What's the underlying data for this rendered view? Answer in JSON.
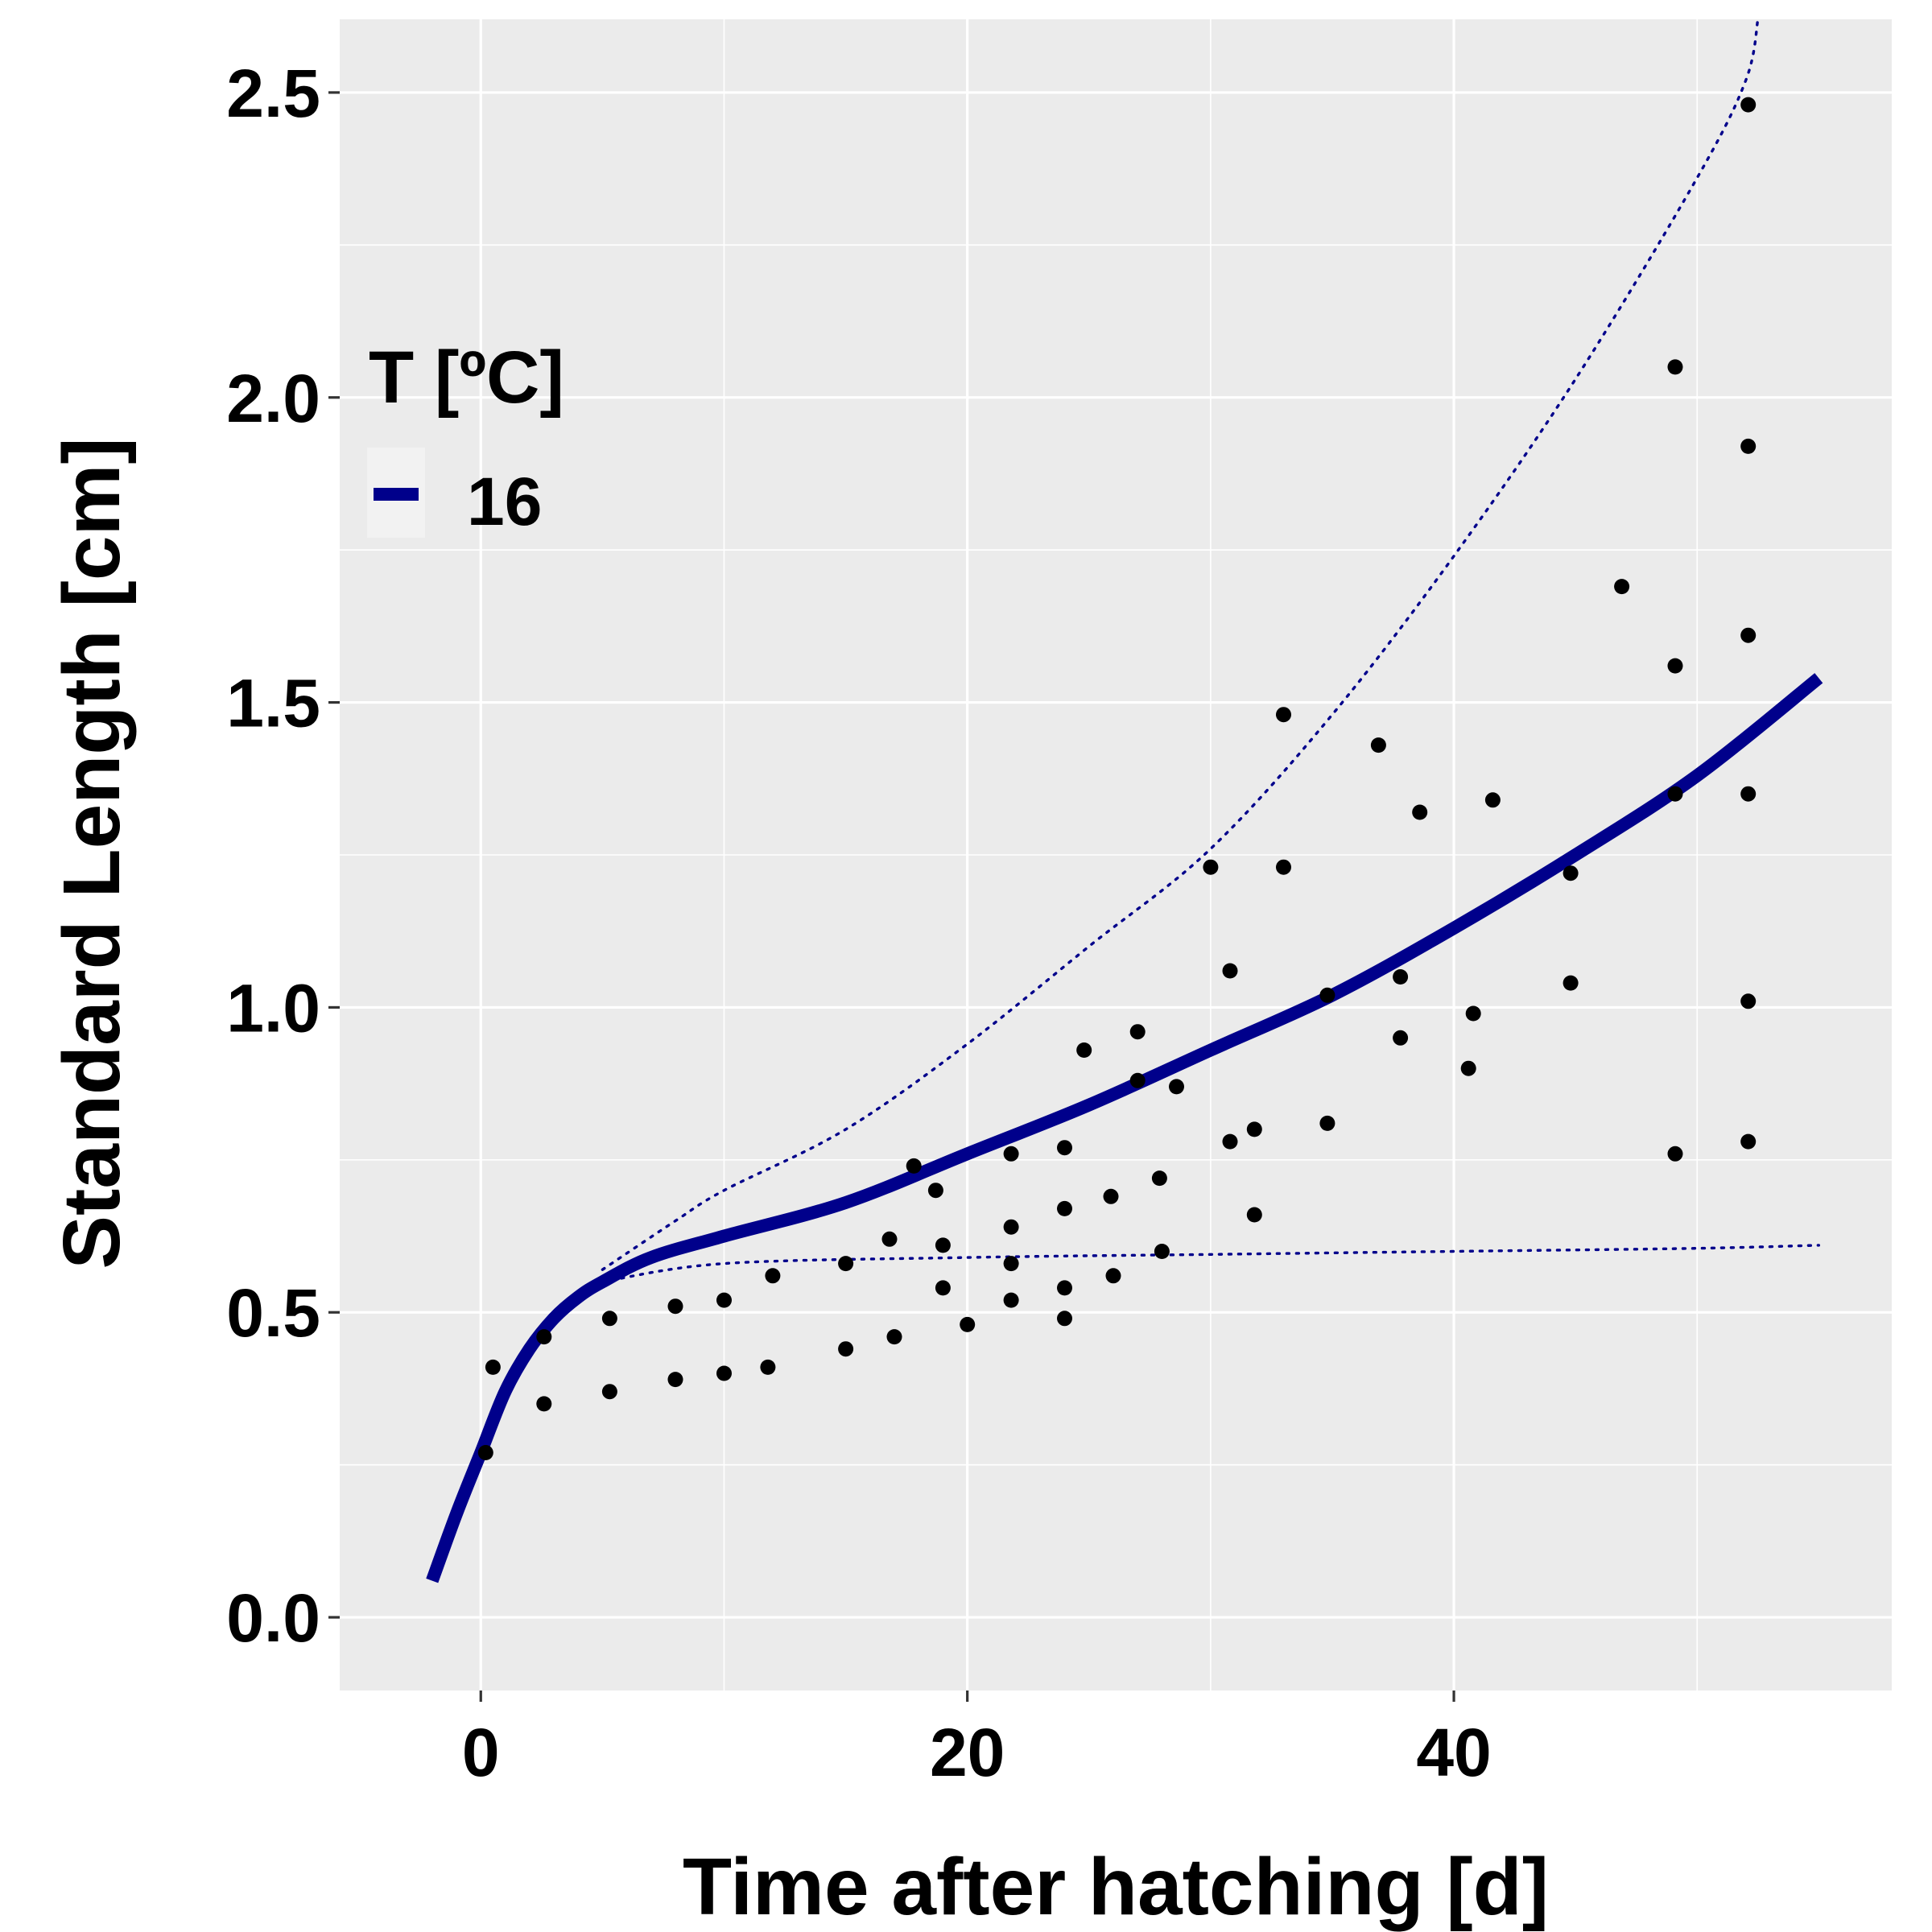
{
  "chart_data": {
    "type": "line",
    "title": "",
    "xlabel": "Time after hatching [d]",
    "ylabel": "Standard Length [cm]",
    "xlim": [
      -5.8,
      58.0
    ],
    "ylim": [
      -0.12,
      2.62
    ],
    "x_ticks": [
      0,
      20,
      40
    ],
    "x_tick_labels": [
      "0",
      "20",
      "40"
    ],
    "y_ticks": [
      0.0,
      0.5,
      1.0,
      1.5,
      2.0,
      2.5
    ],
    "y_tick_labels": [
      "0.0",
      "0.5",
      "1.0",
      "1.5",
      "2.0",
      "2.5"
    ],
    "grid": true,
    "panel_background": "#EBEBEB",
    "grid_color": "#FFFFFF",
    "legend": {
      "title": "T [ºC]",
      "position": "top-left",
      "entries": [
        {
          "label": "16",
          "color": "#00008B"
        }
      ]
    },
    "series": [
      {
        "name": "16",
        "kind": "fitted-line",
        "color": "#00008B",
        "x": [
          -2,
          -1,
          0,
          1,
          2,
          3,
          4,
          5,
          7,
          10,
          15,
          20,
          25,
          30,
          35,
          40,
          45,
          50,
          55
        ],
        "y": [
          0.06,
          0.17,
          0.27,
          0.37,
          0.44,
          0.49,
          0.525,
          0.55,
          0.59,
          0.625,
          0.68,
          0.76,
          0.84,
          0.93,
          1.02,
          1.13,
          1.25,
          1.38,
          1.54
        ]
      },
      {
        "kind": "upper-bound-dotted",
        "color": "#00008B",
        "x": [
          5,
          8,
          10,
          15,
          20,
          25,
          30,
          35,
          40,
          45,
          50,
          52,
          52.5
        ],
        "y": [
          0.57,
          0.65,
          0.7,
          0.8,
          0.94,
          1.1,
          1.26,
          1.48,
          1.74,
          2.03,
          2.36,
          2.52,
          2.62
        ]
      },
      {
        "kind": "lower-bound-dotted",
        "color": "#00008B",
        "x": [
          5,
          10,
          20,
          30,
          40,
          50,
          55
        ],
        "y": [
          0.55,
          0.58,
          0.59,
          0.595,
          0.6,
          0.605,
          0.61
        ]
      },
      {
        "kind": "observations",
        "color": "#000000",
        "points": [
          [
            0.5,
            0.41
          ],
          [
            0.2,
            0.27
          ],
          [
            2.6,
            0.46
          ],
          [
            2.6,
            0.35
          ],
          [
            5.3,
            0.49
          ],
          [
            5.3,
            0.37
          ],
          [
            8,
            0.51
          ],
          [
            8,
            0.39
          ],
          [
            10,
            0.52
          ],
          [
            10,
            0.4
          ],
          [
            12,
            0.56
          ],
          [
            11.8,
            0.41
          ],
          [
            15,
            0.58
          ],
          [
            15,
            0.44
          ],
          [
            16.8,
            0.62
          ],
          [
            17,
            0.46
          ],
          [
            17.8,
            0.74
          ],
          [
            18.7,
            0.7
          ],
          [
            19,
            0.61
          ],
          [
            19,
            0.54
          ],
          [
            20,
            0.48
          ],
          [
            21.8,
            0.76
          ],
          [
            21.8,
            0.64
          ],
          [
            21.8,
            0.58
          ],
          [
            21.8,
            0.52
          ],
          [
            24,
            0.77
          ],
          [
            24,
            0.67
          ],
          [
            24,
            0.54
          ],
          [
            24,
            0.49
          ],
          [
            24.8,
            0.93
          ],
          [
            25.9,
            0.69
          ],
          [
            26,
            0.56
          ],
          [
            27,
            0.96
          ],
          [
            27,
            0.88
          ],
          [
            27.9,
            0.72
          ],
          [
            28,
            0.6
          ],
          [
            28.6,
            0.87
          ],
          [
            30,
            1.23
          ],
          [
            30.8,
            1.06
          ],
          [
            30.8,
            0.78
          ],
          [
            31.8,
            0.8
          ],
          [
            31.8,
            0.66
          ],
          [
            33,
            1.48
          ],
          [
            33,
            1.23
          ],
          [
            34.8,
            1.02
          ],
          [
            34.8,
            0.81
          ],
          [
            36.9,
            1.43
          ],
          [
            37.8,
            1.05
          ],
          [
            37.8,
            0.95
          ],
          [
            38.6,
            1.32
          ],
          [
            40.6,
            0.9
          ],
          [
            40.8,
            0.99
          ],
          [
            41.6,
            1.34
          ],
          [
            44.8,
            1.22
          ],
          [
            44.8,
            1.04
          ],
          [
            46.9,
            1.69
          ],
          [
            49.1,
            2.05
          ],
          [
            49.1,
            1.56
          ],
          [
            49.1,
            1.35
          ],
          [
            49.1,
            0.76
          ],
          [
            52.1,
            2.48
          ],
          [
            52.1,
            1.92
          ],
          [
            52.1,
            1.61
          ],
          [
            52.1,
            1.35
          ],
          [
            52.1,
            1.01
          ],
          [
            52.1,
            0.78
          ]
        ]
      }
    ]
  }
}
